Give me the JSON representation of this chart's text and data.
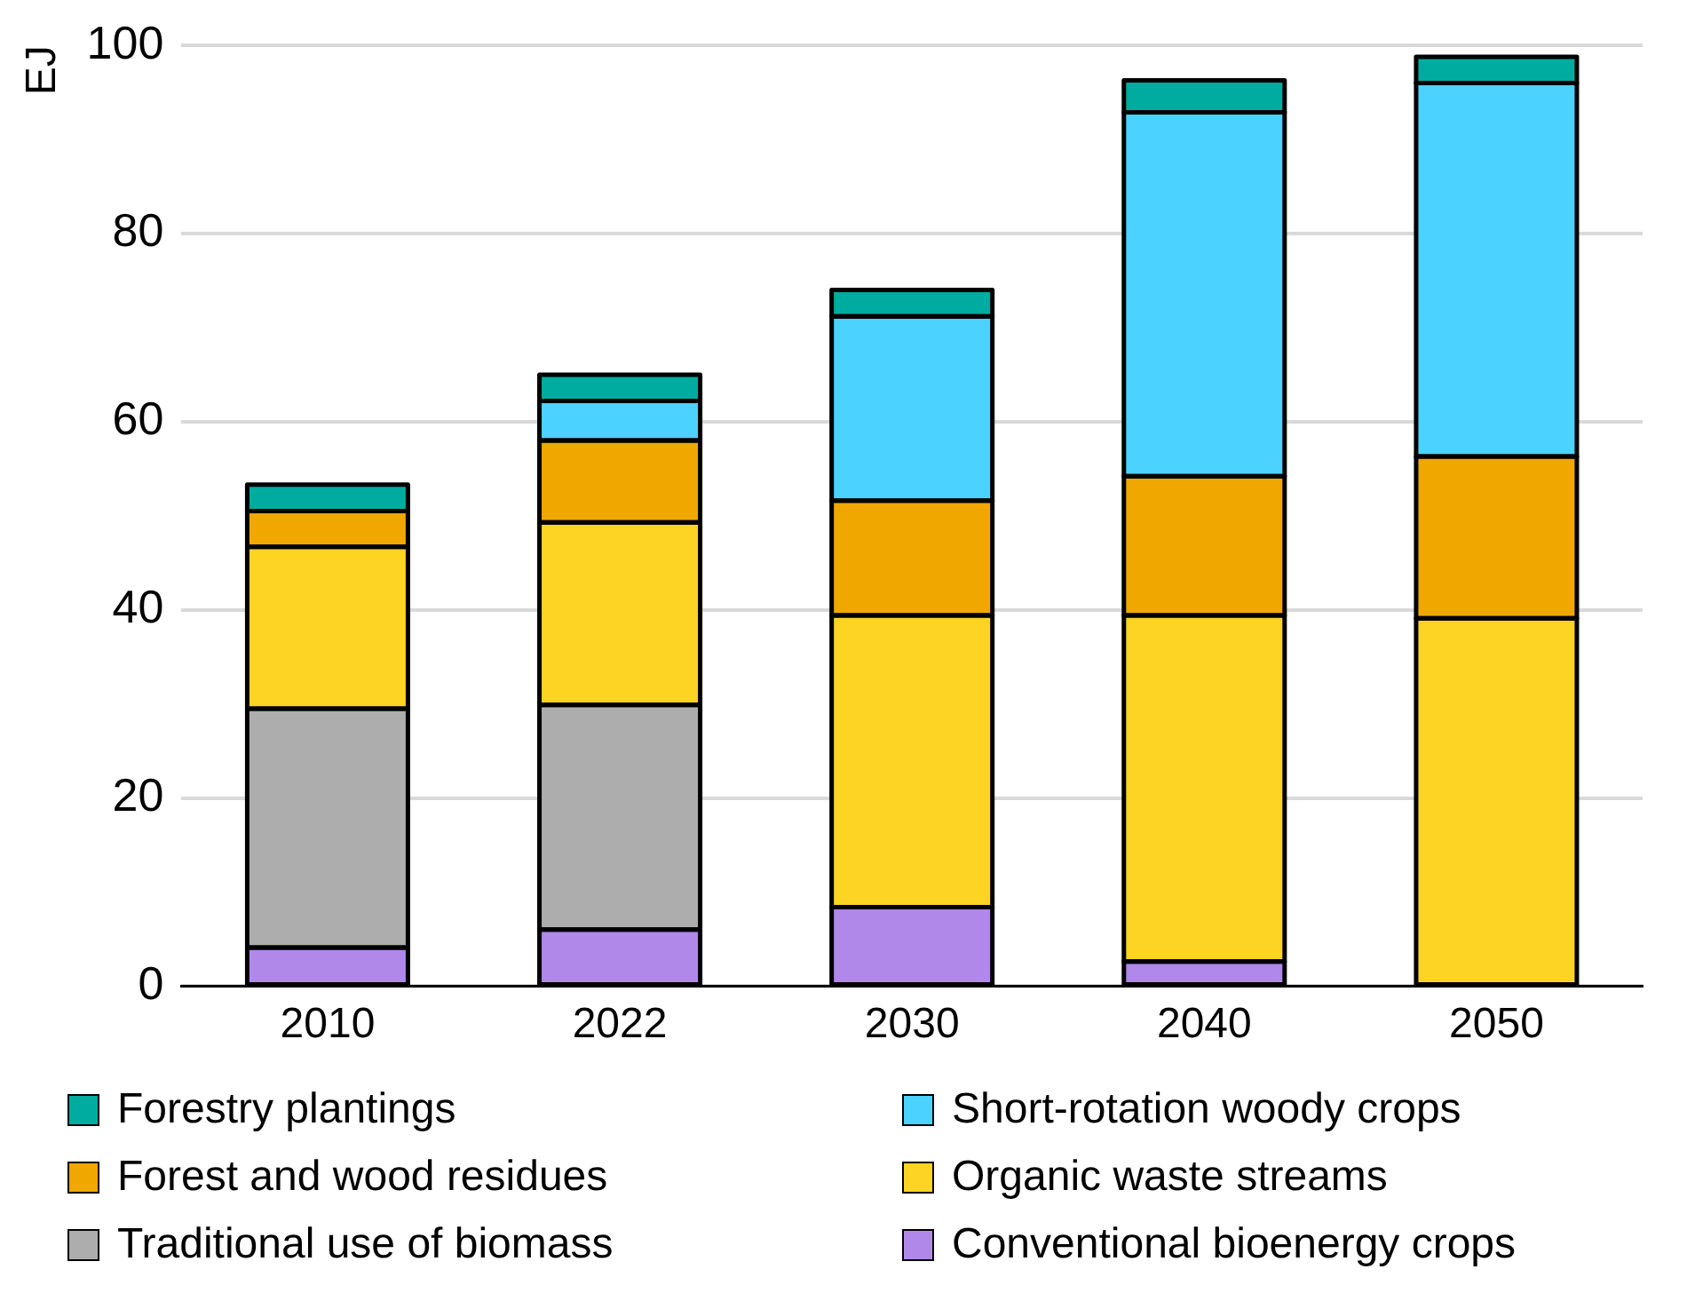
{
  "chart_data": {
    "type": "bar",
    "stacked": true,
    "ylabel": "EJ",
    "categories": [
      "2010",
      "2022",
      "2030",
      "2040",
      "2050"
    ],
    "ylim": [
      0,
      100
    ],
    "yticks": [
      0,
      20,
      40,
      60,
      80,
      100
    ],
    "grid": "y",
    "legend": "bottom",
    "series": [
      {
        "name": "Conventional bioenergy crops",
        "color": "#b088ea",
        "values": [
          4.1,
          6.0,
          8.4,
          2.6,
          null
        ]
      },
      {
        "name": "Traditional use of biomass",
        "color": "#adadad",
        "values": [
          25.4,
          23.9,
          null,
          null,
          null
        ]
      },
      {
        "name": "Organic waste streams",
        "color": "#fdd324",
        "values": [
          17.2,
          19.4,
          31.0,
          36.8,
          39.1
        ]
      },
      {
        "name": "Forest and wood residues",
        "color": "#f0a800",
        "values": [
          3.8,
          8.7,
          12.2,
          14.8,
          17.2
        ]
      },
      {
        "name": "Short-rotation woody crops",
        "color": "#4cd2ff",
        "values": [
          null,
          4.2,
          19.6,
          38.7,
          39.7
        ]
      },
      {
        "name": "Forestry plantings",
        "color": "#00ac9f",
        "values": [
          2.8,
          2.8,
          2.8,
          3.4,
          2.8
        ]
      }
    ]
  }
}
